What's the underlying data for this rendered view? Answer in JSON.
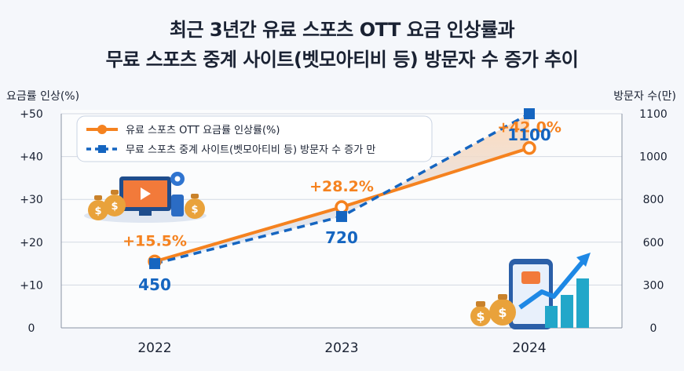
{
  "title_line1": "최근 3년간 유료 스포츠 OTT 요금 인상률과",
  "title_line2": "무료 스포츠 중계 사이트(벳모아티비 등) 방문자 수 증가 추이",
  "colors": {
    "orange": "#f5821f",
    "blue": "#1565c0",
    "text": "#1a2233",
    "area": "#ffd8b5"
  },
  "chart_data": {
    "type": "line",
    "title": "최근 3년간 유료 스포츠 OTT 요금 인상률과 무료 스포츠 중계 사이트(벳모아티비 등) 방문자 수 증가 추이",
    "x": [
      "2022",
      "2023",
      "2024"
    ],
    "ylabel_left": "요금률 인상(%)",
    "ylabel_right": "방문자 수(만)",
    "left_ticks": [
      "0",
      "+10",
      "+20",
      "+30",
      "+40",
      "+50"
    ],
    "right_ticks": [
      "0",
      "300",
      "600",
      "800",
      "1000",
      "1100"
    ],
    "ylim_left": [
      0,
      50
    ],
    "series": [
      {
        "name": "유료 스포츠 OTT 요금률 인상률(%)",
        "axis": "left",
        "values": [
          15.5,
          28.2,
          42.0
        ],
        "labels": [
          "+15.5%",
          "+28.2%",
          "+42.0%"
        ],
        "color": "#f5821f",
        "style": "solid"
      },
      {
        "name": "무료 스포츠 중계 사이트(벳모아티비 등) 방문자 수 증가 만",
        "axis": "right",
        "values": [
          450,
          720,
          1100
        ],
        "labels": [
          "450",
          "720",
          "1100"
        ],
        "color": "#1565c0",
        "style": "dashed"
      }
    ],
    "legend": "top-left",
    "grid": true
  }
}
